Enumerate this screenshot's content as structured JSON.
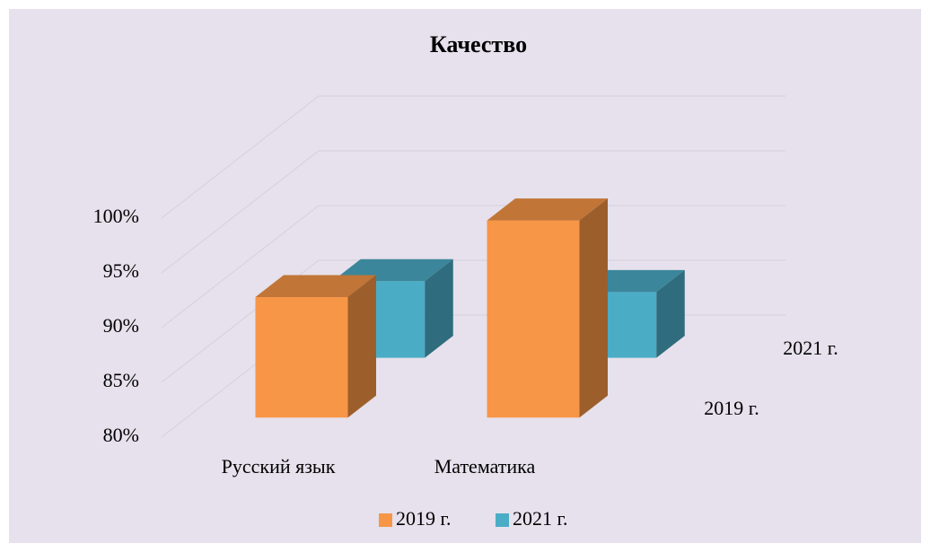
{
  "chart_data": {
    "type": "bar3d",
    "title": "Качество",
    "categories": [
      "Русский язык",
      "Математика"
    ],
    "series": [
      {
        "name": "2019 г.",
        "color": "#f79646",
        "values": [
          91,
          98
        ]
      },
      {
        "name": "2021 г.",
        "color": "#4bacc6",
        "values": [
          87,
          86
        ]
      }
    ],
    "ylim": [
      80,
      100
    ],
    "yticks": [
      {
        "value": 80,
        "label": "80%"
      },
      {
        "value": 85,
        "label": "85%"
      },
      {
        "value": 90,
        "label": "90%"
      },
      {
        "value": 95,
        "label": "95%"
      },
      {
        "value": 100,
        "label": "100%"
      }
    ],
    "grid": true,
    "legend": "bottom"
  }
}
